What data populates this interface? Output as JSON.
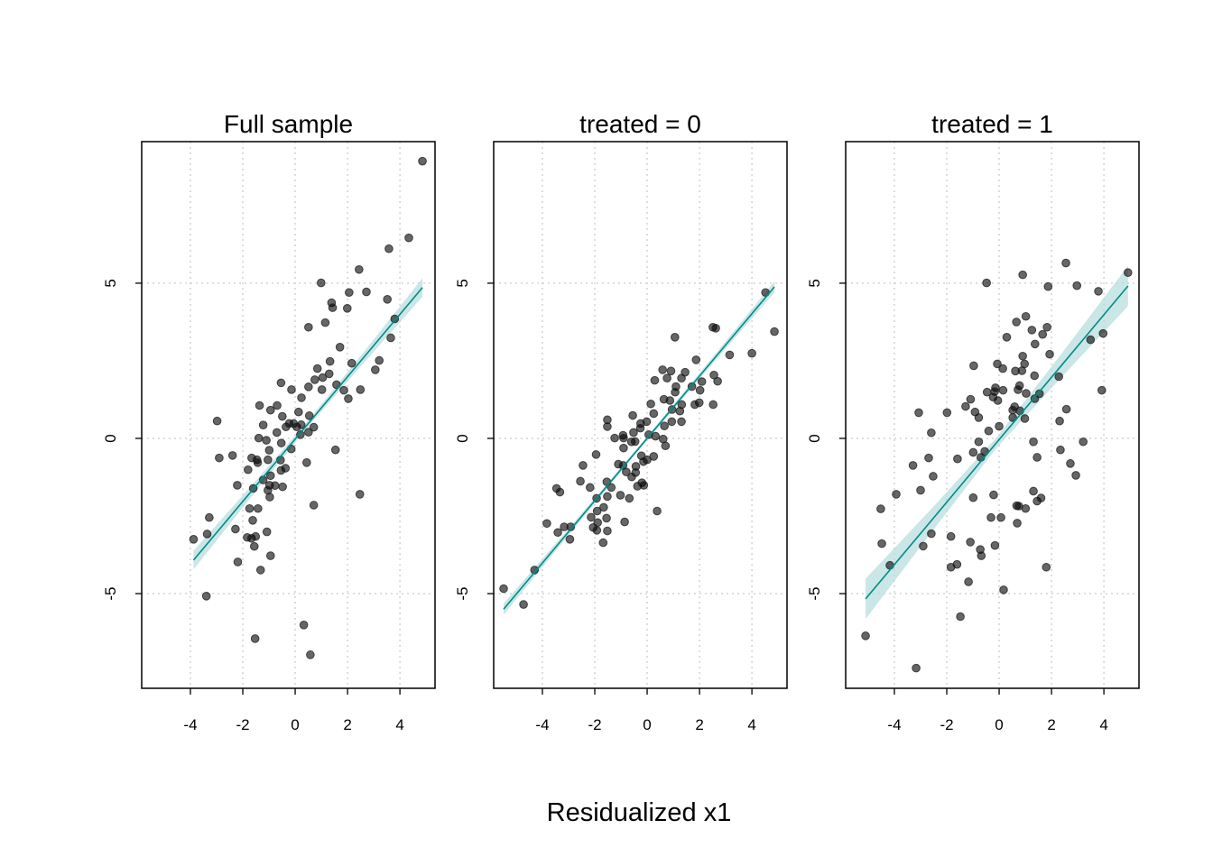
{
  "chart_data": [
    {
      "type": "scatter",
      "title": "Full sample",
      "xlim": [
        -5.86,
        5.34
      ],
      "ylim": [
        -8.05,
        9.56
      ],
      "xticks": [
        -4,
        -2,
        0,
        2,
        4
      ],
      "yticks": [
        -5,
        0,
        5
      ],
      "grid": true,
      "point_color": "#000000",
      "fit_color": "#008B8B",
      "band_color": "#B4DCDC",
      "points": [
        [
          4.86,
          8.93
        ],
        [
          4.34,
          6.46
        ],
        [
          3.58,
          6.11
        ],
        [
          2.44,
          5.44
        ],
        [
          0.99,
          5.01
        ],
        [
          2.06,
          4.7
        ],
        [
          2.72,
          4.72
        ],
        [
          1.39,
          4.37
        ],
        [
          1.43,
          4.21
        ],
        [
          1.99,
          4.19
        ],
        [
          3.52,
          4.48
        ],
        [
          0.51,
          3.58
        ],
        [
          1.15,
          3.73
        ],
        [
          3.8,
          3.85
        ],
        [
          3.65,
          3.24
        ],
        [
          1.71,
          2.94
        ],
        [
          3.21,
          2.51
        ],
        [
          3.06,
          2.21
        ],
        [
          1.33,
          2.48
        ],
        [
          0.85,
          2.25
        ],
        [
          2.16,
          2.42
        ],
        [
          1.3,
          2.08
        ],
        [
          1.05,
          1.96
        ],
        [
          0.75,
          1.89
        ],
        [
          1.58,
          1.73
        ],
        [
          0.51,
          1.66
        ],
        [
          1.02,
          1.57
        ],
        [
          1.86,
          1.55
        ],
        [
          2.49,
          1.57
        ],
        [
          2.03,
          1.28
        ],
        [
          -0.54,
          1.79
        ],
        [
          -0.14,
          1.57
        ],
        [
          0.24,
          1.31
        ],
        [
          -1.36,
          1.06
        ],
        [
          -0.69,
          1.06
        ],
        [
          -0.94,
          0.91
        ],
        [
          0.13,
          0.85
        ],
        [
          -0.49,
          0.71
        ],
        [
          0.54,
          0.73
        ],
        [
          -1.22,
          0.43
        ],
        [
          -0.35,
          0.37
        ],
        [
          -0.23,
          0.48
        ],
        [
          -0.06,
          0.48
        ],
        [
          0.06,
          0.37
        ],
        [
          0.23,
          0.44
        ],
        [
          0.71,
          0.36
        ],
        [
          0.51,
          0.2
        ],
        [
          0.2,
          0.12
        ],
        [
          -2.98,
          0.56
        ],
        [
          -1.39,
          0.01
        ],
        [
          -1.1,
          -0.06
        ],
        [
          -0.7,
          0.19
        ],
        [
          -0.53,
          -0.15
        ],
        [
          -0.15,
          -0.34
        ],
        [
          1.54,
          -0.37
        ],
        [
          -0.99,
          -0.38
        ],
        [
          -2.9,
          -0.63
        ],
        [
          -2.39,
          -0.55
        ],
        [
          -1.66,
          -0.63
        ],
        [
          -1.46,
          -0.69
        ],
        [
          -1.43,
          -0.78
        ],
        [
          -1.04,
          -0.69
        ],
        [
          -0.56,
          -0.7
        ],
        [
          0.44,
          -0.78
        ],
        [
          -1.8,
          -1.01
        ],
        [
          -0.37,
          -0.96
        ],
        [
          -0.54,
          -1.03
        ],
        [
          -1.22,
          -1.34
        ],
        [
          -0.94,
          -1.2
        ],
        [
          -1.6,
          -1.61
        ],
        [
          -2.21,
          -1.51
        ],
        [
          -0.98,
          -1.51
        ],
        [
          -1.04,
          -1.67
        ],
        [
          -0.77,
          -1.52
        ],
        [
          -0.48,
          -1.56
        ],
        [
          -0.97,
          -1.89
        ],
        [
          2.47,
          -1.8
        ],
        [
          -1.74,
          -2.26
        ],
        [
          -1.42,
          -2.26
        ],
        [
          0.71,
          -2.15
        ],
        [
          -3.28,
          -2.55
        ],
        [
          -1.62,
          -2.64
        ],
        [
          -3.36,
          -3.08
        ],
        [
          -2.28,
          -2.92
        ],
        [
          -3.88,
          -3.25
        ],
        [
          -1.83,
          -3.19
        ],
        [
          -1.67,
          -3.22
        ],
        [
          -1.51,
          -3.16
        ],
        [
          -1.08,
          -3.01
        ],
        [
          -1.56,
          -3.48
        ],
        [
          -2.19,
          -3.98
        ],
        [
          -0.94,
          -3.78
        ],
        [
          -1.32,
          -4.24
        ],
        [
          -3.39,
          -5.08
        ],
        [
          0.33,
          -6.01
        ],
        [
          -1.53,
          -6.45
        ],
        [
          0.58,
          -6.97
        ]
      ],
      "fit": {
        "x": [
          -3.88,
          -1.7,
          0.5,
          2.7,
          4.86
        ],
        "y": [
          -3.92,
          -1.73,
          0.48,
          2.69,
          4.86
        ],
        "lower": [
          -4.22,
          -1.91,
          0.38,
          2.51,
          4.56
        ],
        "upper": [
          -3.62,
          -1.55,
          0.58,
          2.87,
          5.16
        ]
      }
    },
    {
      "type": "scatter",
      "title": "treated = 0",
      "xlim": [
        -5.86,
        5.34
      ],
      "ylim": [
        -8.05,
        9.56
      ],
      "xticks": [
        -4,
        -2,
        0,
        2,
        4
      ],
      "yticks": [
        -5,
        0,
        5
      ],
      "grid": true,
      "point_color": "#000000",
      "fit_color": "#008B8B",
      "band_color": "#B4DCDC",
      "points": [
        [
          4.52,
          4.7
        ],
        [
          4.86,
          3.44
        ],
        [
          2.51,
          3.58
        ],
        [
          2.62,
          3.55
        ],
        [
          1.06,
          3.26
        ],
        [
          3.15,
          2.69
        ],
        [
          4.0,
          2.74
        ],
        [
          1.87,
          2.53
        ],
        [
          0.59,
          2.21
        ],
        [
          0.91,
          2.17
        ],
        [
          0.76,
          1.94
        ],
        [
          1.45,
          2.13
        ],
        [
          1.31,
          1.94
        ],
        [
          0.29,
          1.87
        ],
        [
          1.1,
          1.67
        ],
        [
          1.07,
          1.49
        ],
        [
          1.71,
          1.67
        ],
        [
          2.09,
          1.83
        ],
        [
          2.55,
          2.04
        ],
        [
          2.69,
          1.84
        ],
        [
          2.02,
          1.55
        ],
        [
          1.99,
          1.15
        ],
        [
          1.82,
          1.09
        ],
        [
          2.52,
          1.09
        ],
        [
          0.14,
          1.11
        ],
        [
          0.64,
          1.26
        ],
        [
          0.87,
          1.22
        ],
        [
          0.95,
          0.93
        ],
        [
          1.32,
          1.09
        ],
        [
          1.25,
          0.88
        ],
        [
          0.25,
          0.8
        ],
        [
          -0.55,
          0.74
        ],
        [
          -1.52,
          0.6
        ],
        [
          -1.52,
          0.38
        ],
        [
          -0.25,
          0.48
        ],
        [
          -0.02,
          0.54
        ],
        [
          -0.26,
          0.33
        ],
        [
          0.94,
          0.54
        ],
        [
          1.31,
          0.54
        ],
        [
          0.66,
          0.4
        ],
        [
          -0.52,
          0.19
        ],
        [
          0.06,
          0.12
        ],
        [
          -1.24,
          0.01
        ],
        [
          -0.92,
          0.1
        ],
        [
          -0.9,
          0.01
        ],
        [
          0.32,
          0.07
        ],
        [
          0.61,
          -0.02
        ],
        [
          0.7,
          -0.24
        ],
        [
          -0.6,
          -0.11
        ],
        [
          -0.46,
          -0.1
        ],
        [
          -0.9,
          -0.31
        ],
        [
          -1.95,
          -0.52
        ],
        [
          -0.22,
          -0.56
        ],
        [
          0.25,
          -0.58
        ],
        [
          0.0,
          -0.69
        ],
        [
          -0.14,
          -0.75
        ],
        [
          -1.1,
          -0.83
        ],
        [
          -0.92,
          -0.87
        ],
        [
          -0.43,
          -0.9
        ],
        [
          -2.45,
          -0.87
        ],
        [
          -0.8,
          -1.08
        ],
        [
          -0.44,
          -1.1
        ],
        [
          -0.59,
          -1.24
        ],
        [
          -1.54,
          -1.4
        ],
        [
          -2.55,
          -1.38
        ],
        [
          -1.37,
          -1.58
        ],
        [
          -0.37,
          -1.54
        ],
        [
          -0.2,
          -1.43
        ],
        [
          -0.13,
          -1.51
        ],
        [
          -2.18,
          -1.58
        ],
        [
          -3.46,
          -1.61
        ],
        [
          -3.33,
          -1.73
        ],
        [
          -1.93,
          -1.93
        ],
        [
          -1.52,
          -1.87
        ],
        [
          -1.02,
          -1.83
        ],
        [
          -0.68,
          -1.93
        ],
        [
          -1.66,
          -2.22
        ],
        [
          -1.91,
          -2.34
        ],
        [
          0.38,
          -2.34
        ],
        [
          -2.14,
          -2.54
        ],
        [
          -1.55,
          -2.57
        ],
        [
          -0.86,
          -2.69
        ],
        [
          -3.83,
          -2.74
        ],
        [
          -1.89,
          -2.71
        ],
        [
          -3.17,
          -2.85
        ],
        [
          -2.92,
          -2.85
        ],
        [
          -2.06,
          -2.87
        ],
        [
          -1.92,
          -2.96
        ],
        [
          -1.52,
          -2.98
        ],
        [
          -3.41,
          -3.03
        ],
        [
          -2.95,
          -3.25
        ],
        [
          -1.68,
          -3.36
        ],
        [
          -4.3,
          -4.24
        ],
        [
          -5.48,
          -4.84
        ],
        [
          -4.72,
          -5.35
        ]
      ],
      "fit": {
        "x": [
          -5.48,
          -2.8,
          -0.3,
          2.3,
          4.86
        ],
        "y": [
          -5.5,
          -2.81,
          -0.3,
          2.31,
          4.88
        ],
        "lower": [
          -5.68,
          -2.91,
          -0.36,
          2.21,
          4.7
        ],
        "upper": [
          -5.32,
          -2.71,
          -0.24,
          2.41,
          5.06
        ]
      }
    },
    {
      "type": "scatter",
      "title": "treated = 1",
      "xlim": [
        -5.86,
        5.34
      ],
      "ylim": [
        -8.05,
        9.56
      ],
      "xticks": [
        -4,
        -2,
        0,
        2,
        4
      ],
      "yticks": [
        -5,
        0,
        5
      ],
      "grid": true,
      "point_color": "#000000",
      "fit_color": "#008B8B",
      "band_color": "#B4DCDC",
      "points": [
        [
          4.92,
          5.34
        ],
        [
          2.55,
          5.65
        ],
        [
          0.9,
          5.27
        ],
        [
          -0.48,
          5.01
        ],
        [
          1.87,
          4.89
        ],
        [
          2.97,
          4.92
        ],
        [
          3.79,
          4.74
        ],
        [
          1.02,
          3.93
        ],
        [
          0.66,
          3.75
        ],
        [
          1.25,
          3.49
        ],
        [
          1.83,
          3.58
        ],
        [
          1.66,
          3.35
        ],
        [
          0.29,
          3.26
        ],
        [
          1.37,
          3.04
        ],
        [
          3.49,
          3.18
        ],
        [
          3.97,
          3.38
        ],
        [
          1.93,
          2.71
        ],
        [
          0.9,
          2.65
        ],
        [
          0.97,
          2.4
        ],
        [
          -0.07,
          2.4
        ],
        [
          -0.97,
          2.34
        ],
        [
          0.14,
          2.25
        ],
        [
          0.62,
          2.17
        ],
        [
          0.87,
          2.18
        ],
        [
          1.35,
          2.02
        ],
        [
          2.28,
          1.99
        ],
        [
          0.78,
          1.7
        ],
        [
          0.72,
          1.57
        ],
        [
          -0.14,
          1.63
        ],
        [
          -0.17,
          1.51
        ],
        [
          -0.46,
          1.49
        ],
        [
          0.15,
          1.55
        ],
        [
          1.03,
          1.45
        ],
        [
          1.54,
          1.44
        ],
        [
          1.36,
          1.28
        ],
        [
          3.92,
          1.55
        ],
        [
          -0.23,
          1.33
        ],
        [
          -0.05,
          1.22
        ],
        [
          -1.09,
          1.26
        ],
        [
          -1.28,
          1.03
        ],
        [
          0.59,
          1.02
        ],
        [
          0.52,
          0.91
        ],
        [
          0.79,
          0.89
        ],
        [
          2.57,
          0.94
        ],
        [
          -0.92,
          0.85
        ],
        [
          -0.78,
          0.67
        ],
        [
          0.52,
          0.67
        ],
        [
          0.98,
          0.64
        ],
        [
          2.31,
          0.56
        ],
        [
          -3.07,
          0.83
        ],
        [
          -1.99,
          0.83
        ],
        [
          0.0,
          0.39
        ],
        [
          -0.4,
          0.24
        ],
        [
          -2.59,
          0.18
        ],
        [
          -0.78,
          -0.11
        ],
        [
          1.31,
          -0.11
        ],
        [
          3.21,
          -0.11
        ],
        [
          -0.99,
          -0.45
        ],
        [
          -0.55,
          -0.42
        ],
        [
          -0.7,
          -0.61
        ],
        [
          2.34,
          -0.37
        ],
        [
          1.45,
          -0.61
        ],
        [
          -2.69,
          -0.63
        ],
        [
          -1.59,
          -0.66
        ],
        [
          -3.29,
          -0.87
        ],
        [
          2.72,
          -0.81
        ],
        [
          -2.52,
          -1.22
        ],
        [
          2.93,
          -1.19
        ],
        [
          -3.0,
          -1.67
        ],
        [
          -3.93,
          -1.8
        ],
        [
          -0.99,
          -1.91
        ],
        [
          -0.21,
          -1.82
        ],
        [
          1.31,
          -1.7
        ],
        [
          1.45,
          -2.02
        ],
        [
          1.6,
          -1.92
        ],
        [
          -4.52,
          -2.27
        ],
        [
          0.67,
          -2.17
        ],
        [
          0.75,
          -2.18
        ],
        [
          1.01,
          -2.26
        ],
        [
          -0.31,
          -2.55
        ],
        [
          0.07,
          -2.55
        ],
        [
          0.69,
          -2.73
        ],
        [
          -2.59,
          -3.07
        ],
        [
          -1.84,
          -3.16
        ],
        [
          -1.1,
          -3.34
        ],
        [
          -0.16,
          -3.45
        ],
        [
          -4.48,
          -3.39
        ],
        [
          -2.9,
          -3.47
        ],
        [
          -0.72,
          -3.58
        ],
        [
          -0.68,
          -3.78
        ],
        [
          -4.17,
          -4.09
        ],
        [
          -1.84,
          -4.15
        ],
        [
          -1.61,
          -4.06
        ],
        [
          1.8,
          -4.15
        ],
        [
          -1.17,
          -4.62
        ],
        [
          0.17,
          -4.88
        ],
        [
          -1.48,
          -5.74
        ],
        [
          -5.1,
          -6.36
        ],
        [
          -3.17,
          -7.4
        ]
      ],
      "fit": {
        "x": [
          -5.1,
          -2.6,
          -0.1,
          2.4,
          4.92
        ],
        "y": [
          -5.17,
          -2.66,
          -0.14,
          2.37,
          4.91
        ],
        "lower": [
          -5.82,
          -3.04,
          -0.31,
          1.99,
          4.26
        ],
        "upper": [
          -4.52,
          -2.28,
          0.03,
          2.75,
          5.56
        ]
      }
    }
  ],
  "xlabel": "Residualized x1"
}
